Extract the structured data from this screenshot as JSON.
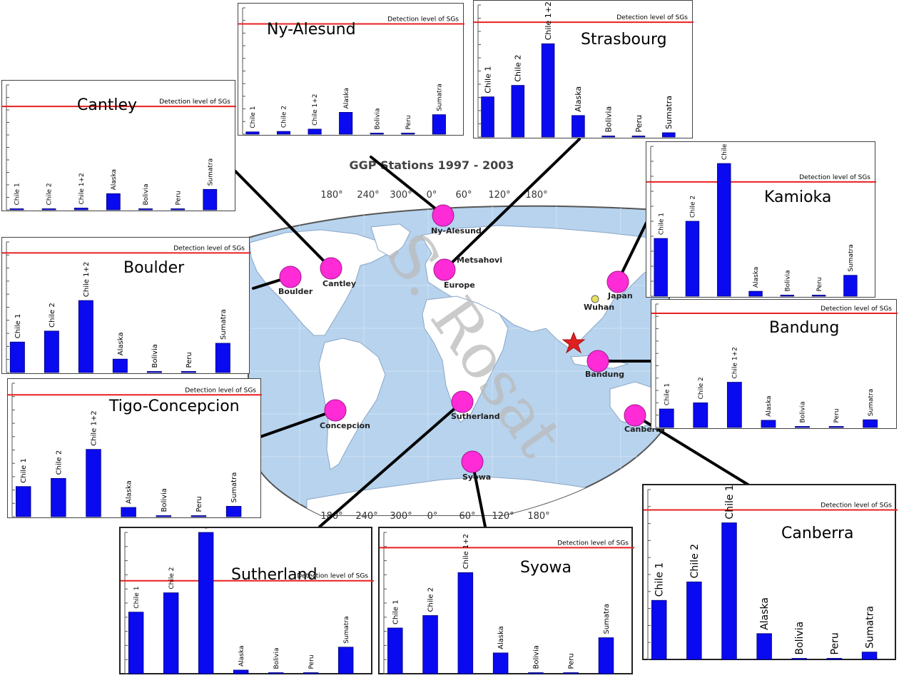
{
  "map": {
    "title": "GGP Stations 1997 - 2003",
    "watermark": "S. Rosat",
    "longitude_ticks": [
      "180°",
      "240°",
      "300°",
      "0°",
      "60°",
      "120°",
      "180°"
    ],
    "station_labels": [
      "Ny-Alesund",
      "Metsahovi",
      "Europe",
      "Cantley",
      "Boulder",
      "Japan",
      "Wuhan",
      "Bandung",
      "Concepcion",
      "Sutherland",
      "Syowa",
      "Canberra"
    ],
    "colors": {
      "ocean": "#b7d3ee",
      "land": "#ffffff",
      "marker": "#ff2bd6",
      "epicenter": "#e02020"
    }
  },
  "legend_text": "Detection level of SGs",
  "chart_data": [
    {
      "type": "bar",
      "title": "Cantley",
      "categories": [
        "Chile 1",
        "Chile 2",
        "Chile 1+2",
        "Alaska",
        "Bolivia",
        "Peru",
        "Sumatra"
      ],
      "values": [
        0.3,
        0.4,
        0.8,
        7.5,
        0.2,
        0.1,
        9.5
      ],
      "detection_level": 48,
      "ymax": 58
    },
    {
      "type": "bar",
      "title": "Ny-Alesund",
      "categories": [
        "Chile 1",
        "Chile 2",
        "Chile 1+2",
        "Alaska",
        "Bolivia",
        "Peru",
        "Sumatra"
      ],
      "values": [
        1.0,
        1.2,
        2.2,
        9.5,
        0.3,
        0.2,
        8.5
      ],
      "detection_level": 48,
      "ymax": 55
    },
    {
      "type": "bar",
      "title": "Strasbourg",
      "categories": [
        "Chile 1",
        "Chile 2",
        "Chile 1+2",
        "Alaska",
        "Bolivia",
        "Peru",
        "Sumatra"
      ],
      "values": [
        28,
        36,
        65,
        15,
        0.4,
        0.3,
        3
      ],
      "detection_level": 80,
      "ymax": 92
    },
    {
      "type": "bar",
      "title": "Kamioka",
      "categories": [
        "Chile 1",
        "Chile 2",
        "Chile 1+2",
        "Alaska",
        "Bolivia",
        "Peru",
        "Sumatra"
      ],
      "values": [
        47,
        61,
        108,
        4,
        0.5,
        0.4,
        17
      ],
      "detection_level": 93,
      "ymax": 122
    },
    {
      "type": "bar",
      "title": "Boulder",
      "categories": [
        "Chile 1",
        "Chile 2",
        "Chile 1+2",
        "Alaska",
        "Bolivia",
        "Peru",
        "Sumatra"
      ],
      "values": [
        25,
        34,
        59,
        11,
        0.4,
        0.3,
        24
      ],
      "detection_level": 98,
      "ymax": 107
    },
    {
      "type": "bar",
      "title": "Bandung",
      "categories": [
        "Chile 1",
        "Chile 2",
        "Chile 1+2",
        "Alaska",
        "Bolivia",
        "Peru",
        "Sumatra"
      ],
      "values": [
        18,
        24,
        44,
        7,
        0.3,
        0.2,
        7.5
      ],
      "detection_level": 111,
      "ymax": 120
    },
    {
      "type": "bar",
      "title": "Tigo-Concepcion",
      "categories": [
        "Chile 1",
        "Chile 2",
        "Chile 1+2",
        "Alaska",
        "Bolivia",
        "Peru",
        "Sumatra"
      ],
      "values": [
        26,
        33,
        58,
        8,
        0.4,
        0.3,
        9
      ],
      "detection_level": 105,
      "ymax": 115
    },
    {
      "type": "bar",
      "title": "Sutherland",
      "categories": [
        "Chile 1",
        "Chile 2",
        "Chile 1+2",
        "Alaska",
        "Bolivia",
        "Peru",
        "Sumatra"
      ],
      "values": [
        51,
        67,
        117,
        3,
        0.4,
        0.3,
        22
      ],
      "detection_level": 77,
      "ymax": 117
    },
    {
      "type": "bar",
      "title": "Syowa",
      "categories": [
        "Chile 1",
        "Chile 2",
        "Chile 1+2",
        "Alaska",
        "Bolivia",
        "Peru",
        "Sumatra"
      ],
      "values": [
        33,
        42,
        73,
        15,
        0.4,
        0.3,
        26
      ],
      "detection_level": 91,
      "ymax": 102
    },
    {
      "type": "bar",
      "title": "Canberra",
      "categories": [
        "Chile 1",
        "Chile 2",
        "Chile 1+2",
        "Alaska",
        "Bolivia",
        "Peru",
        "Sumatra"
      ],
      "values": [
        32,
        42,
        74,
        14,
        0.5,
        0.6,
        4
      ],
      "detection_level": 81,
      "ymax": 92
    }
  ]
}
